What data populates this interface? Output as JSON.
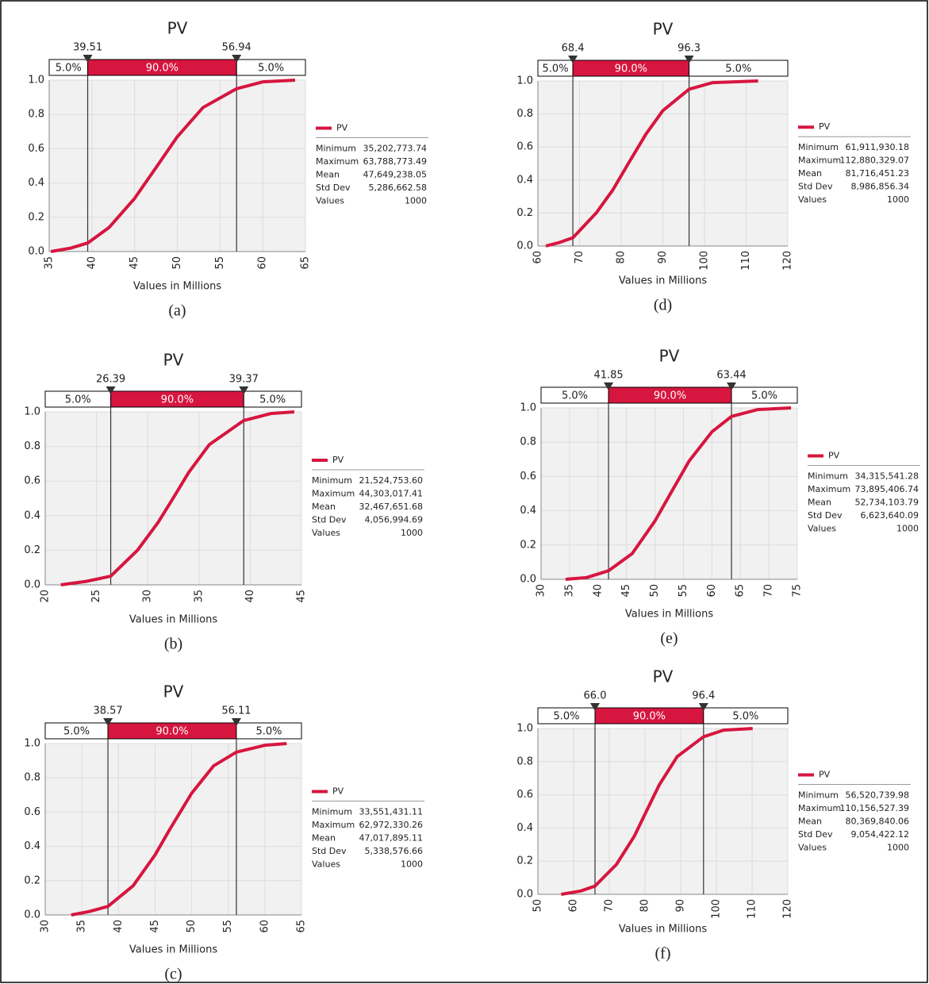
{
  "chart_data": [
    {
      "type": "line",
      "title": "PV",
      "x_label": "Values in Millions",
      "caption": "(a)",
      "xlim": [
        35,
        65
      ],
      "xticks": [
        35,
        40,
        45,
        50,
        55,
        60,
        65
      ],
      "ylim": [
        0,
        1
      ],
      "yticks": [
        {
          "value": 0,
          "label": "0.0"
        },
        0.2,
        0.4,
        0.6,
        0.8,
        {
          "value": 1,
          "label": "1.0"
        }
      ],
      "grid": true,
      "delimiters": [
        39.51,
        56.94
      ],
      "bands": {
        "values": [
          5,
          90,
          5
        ],
        "value_labels": [
          "5.0%",
          "90.0%",
          "5.0%"
        ]
      },
      "series": [
        {
          "name": "PV",
          "color": "#d6163f",
          "x": [
            35.2,
            37.5,
            39.51,
            42,
            45,
            47.65,
            50,
            53,
            56.94,
            60,
            63.79
          ],
          "values": [
            0,
            0.02,
            0.05,
            0.14,
            0.31,
            0.5,
            0.67,
            0.84,
            0.95,
            0.99,
            1
          ]
        }
      ],
      "stats": {
        "labels": [
          "Minimum",
          "Maximum",
          "Mean",
          "Std Dev",
          "Values"
        ],
        "values": [
          35202773.74,
          63788773.49,
          47649238.05,
          5286662.58,
          1000
        ],
        "value_labels": [
          "35,202,773.74",
          "63,788,773.49",
          "47,649,238.05",
          "5,286,662.58",
          "1000"
        ]
      }
    },
    {
      "type": "line",
      "title": "PV",
      "x_label": "Values in Millions",
      "caption": "(b)",
      "xlim": [
        20,
        45
      ],
      "xticks": [
        20,
        25,
        30,
        35,
        40,
        45
      ],
      "ylim": [
        0,
        1
      ],
      "yticks": [
        {
          "value": 0,
          "label": "0.0"
        },
        0.2,
        0.4,
        0.6,
        0.8,
        {
          "value": 1,
          "label": "1.0"
        }
      ],
      "grid": true,
      "delimiters": [
        26.39,
        39.37
      ],
      "bands": {
        "values": [
          5,
          90,
          5
        ],
        "value_labels": [
          "5.0%",
          "90.0%",
          "5.0%"
        ]
      },
      "series": [
        {
          "name": "PV",
          "color": "#d6163f",
          "x": [
            21.52,
            24,
            26.39,
            29,
            31,
            32.47,
            34,
            36,
            39.37,
            42,
            44.3
          ],
          "values": [
            0,
            0.02,
            0.05,
            0.2,
            0.36,
            0.5,
            0.65,
            0.81,
            0.95,
            0.99,
            1
          ]
        }
      ],
      "stats": {
        "labels": [
          "Minimum",
          "Maximum",
          "Mean",
          "Std Dev",
          "Values"
        ],
        "values": [
          21524753.6,
          44303017.41,
          32467651.68,
          4056994.69,
          1000
        ],
        "value_labels": [
          "21,524,753.60",
          "44,303,017.41",
          "32,467,651.68",
          "4,056,994.69",
          "1000"
        ]
      }
    },
    {
      "type": "line",
      "title": "PV",
      "x_label": "Values in Millions",
      "caption": "(c)",
      "xlim": [
        30,
        65
      ],
      "xticks": [
        30,
        35,
        40,
        45,
        50,
        55,
        60,
        65
      ],
      "ylim": [
        0,
        1
      ],
      "yticks": [
        {
          "value": 0,
          "label": "0.0"
        },
        0.2,
        0.4,
        0.6,
        0.8,
        {
          "value": 1,
          "label": "1.0"
        }
      ],
      "grid": true,
      "delimiters": [
        38.57,
        56.11
      ],
      "bands": {
        "values": [
          5,
          90,
          5
        ],
        "value_labels": [
          "5.0%",
          "90.0%",
          "5.0%"
        ]
      },
      "series": [
        {
          "name": "PV",
          "color": "#d6163f",
          "x": [
            33.55,
            36,
            38.57,
            42,
            45,
            47.02,
            50,
            53,
            56.11,
            60,
            62.97
          ],
          "values": [
            0,
            0.02,
            0.05,
            0.17,
            0.35,
            0.5,
            0.71,
            0.87,
            0.95,
            0.99,
            1
          ]
        }
      ],
      "stats": {
        "labels": [
          "Minimum",
          "Maximum",
          "Mean",
          "Std Dev",
          "Values"
        ],
        "values": [
          33551431.11,
          62972330.26,
          47017895.11,
          5338576.66,
          1000
        ],
        "value_labels": [
          "33,551,431.11",
          "62,972,330.26",
          "47,017,895.11",
          "5,338,576.66",
          "1000"
        ]
      }
    },
    {
      "type": "line",
      "title": "PV",
      "x_label": "Values in Millions",
      "caption": "(d)",
      "xlim": [
        60,
        120
      ],
      "xticks": [
        60,
        70,
        80,
        90,
        100,
        110,
        120
      ],
      "ylim": [
        0,
        1
      ],
      "yticks": [
        {
          "value": 0,
          "label": "0.0"
        },
        0.2,
        0.4,
        0.6,
        0.8,
        {
          "value": 1,
          "label": "1.0"
        }
      ],
      "grid": true,
      "delimiters": [
        68.4,
        96.3
      ],
      "bands": {
        "values": [
          5,
          90,
          5
        ],
        "value_labels": [
          "5.0%",
          "90.0%",
          "5.0%"
        ]
      },
      "series": [
        {
          "name": "PV",
          "color": "#d6163f",
          "x": [
            61.91,
            65,
            68.4,
            74,
            78,
            81.72,
            86,
            90,
            96.3,
            102,
            112.88
          ],
          "values": [
            0,
            0.02,
            0.05,
            0.2,
            0.34,
            0.5,
            0.68,
            0.82,
            0.95,
            0.99,
            1
          ]
        }
      ],
      "stats": {
        "labels": [
          "Minimum",
          "Maximum",
          "Mean",
          "Std Dev",
          "Values"
        ],
        "values": [
          61911930.18,
          112880329.07,
          81716451.23,
          8986856.34,
          1000
        ],
        "value_labels": [
          "61,911,930.18",
          "112,880,329.07",
          "81,716,451.23",
          "8,986,856.34",
          "1000"
        ]
      }
    },
    {
      "type": "line",
      "title": "PV",
      "x_label": "Values in Millions",
      "caption": "(e)",
      "xlim": [
        30,
        75
      ],
      "xticks": [
        30,
        35,
        40,
        45,
        50,
        55,
        60,
        65,
        70,
        75
      ],
      "ylim": [
        0,
        1
      ],
      "yticks": [
        {
          "value": 0,
          "label": "0.0"
        },
        0.2,
        0.4,
        0.6,
        0.8,
        {
          "value": 1,
          "label": "1.0"
        }
      ],
      "grid": true,
      "delimiters": [
        41.85,
        63.44
      ],
      "bands": {
        "values": [
          5,
          90,
          5
        ],
        "value_labels": [
          "5.0%",
          "90.0%",
          "5.0%"
        ]
      },
      "series": [
        {
          "name": "PV",
          "color": "#d6163f",
          "x": [
            34.32,
            38,
            41.85,
            46,
            50,
            52.73,
            56,
            60,
            63.44,
            68,
            73.9
          ],
          "values": [
            0,
            0.01,
            0.05,
            0.15,
            0.34,
            0.5,
            0.69,
            0.86,
            0.95,
            0.99,
            1
          ]
        }
      ],
      "stats": {
        "labels": [
          "Minimum",
          "Maximum",
          "Mean",
          "Std Dev",
          "Values"
        ],
        "values": [
          34315541.28,
          73895406.74,
          52734103.79,
          6623640.09,
          1000
        ],
        "value_labels": [
          "34,315,541.28",
          "73,895,406.74",
          "52,734,103.79",
          "6,623,640.09",
          "1000"
        ]
      }
    },
    {
      "type": "line",
      "title": "PV",
      "x_label": "Values in Millions",
      "caption": "(f)",
      "xlim": [
        50,
        120
      ],
      "xticks": [
        50,
        60,
        70,
        80,
        90,
        100,
        110,
        120
      ],
      "ylim": [
        0,
        1
      ],
      "yticks": [
        {
          "value": 0,
          "label": "0.0"
        },
        0.2,
        0.4,
        0.6,
        0.8,
        {
          "value": 1,
          "label": "1.0"
        }
      ],
      "grid": true,
      "delimiters": [
        {
          "value": 66,
          "label": "66.0"
        },
        96.4
      ],
      "bands": {
        "values": [
          5,
          90,
          5
        ],
        "value_labels": [
          "5.0%",
          "90.0%",
          "5.0%"
        ]
      },
      "series": [
        {
          "name": "PV",
          "color": "#d6163f",
          "x": [
            56.52,
            62,
            66,
            72,
            77,
            80.37,
            84,
            89,
            96.4,
            102,
            110.16
          ],
          "values": [
            0,
            0.02,
            0.05,
            0.18,
            0.35,
            0.5,
            0.66,
            0.83,
            0.95,
            0.99,
            1
          ]
        }
      ],
      "stats": {
        "labels": [
          "Minimum",
          "Maximum",
          "Mean",
          "Std Dev",
          "Values"
        ],
        "values": [
          56520739.98,
          110156527.39,
          80369840.06,
          9054422.12,
          1000
        ],
        "value_labels": [
          "56,520,739.98",
          "110,156,527.39",
          "80,369,840.06",
          "9,054,422.12",
          "1000"
        ]
      }
    }
  ]
}
